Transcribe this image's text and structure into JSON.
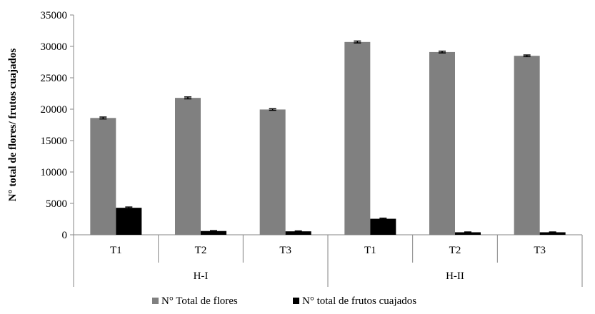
{
  "chart_data": {
    "type": "bar",
    "title": "",
    "xlabel": "",
    "ylabel": "N° total de flores/ frutos cuajados",
    "ylim": [
      0,
      35000
    ],
    "yticks": [
      0,
      5000,
      10000,
      15000,
      20000,
      25000,
      30000,
      35000
    ],
    "grid": false,
    "legend_position": "bottom",
    "categories": [
      "T1",
      "T2",
      "T3",
      "T1",
      "T2",
      "T3"
    ],
    "groups": [
      {
        "label": "H-I",
        "span": 3
      },
      {
        "label": "H-II",
        "span": 3
      }
    ],
    "series": [
      {
        "name": "N° Total de flores",
        "color": "#808080",
        "values": [
          18600,
          21800,
          19950,
          30700,
          29100,
          28500
        ],
        "errors": [
          150,
          150,
          120,
          150,
          140,
          130
        ]
      },
      {
        "name": "N° total de frutos cuajados",
        "color": "#000000",
        "values": [
          4300,
          600,
          550,
          2550,
          400,
          400
        ],
        "errors": [
          120,
          60,
          60,
          100,
          50,
          50
        ]
      }
    ]
  }
}
